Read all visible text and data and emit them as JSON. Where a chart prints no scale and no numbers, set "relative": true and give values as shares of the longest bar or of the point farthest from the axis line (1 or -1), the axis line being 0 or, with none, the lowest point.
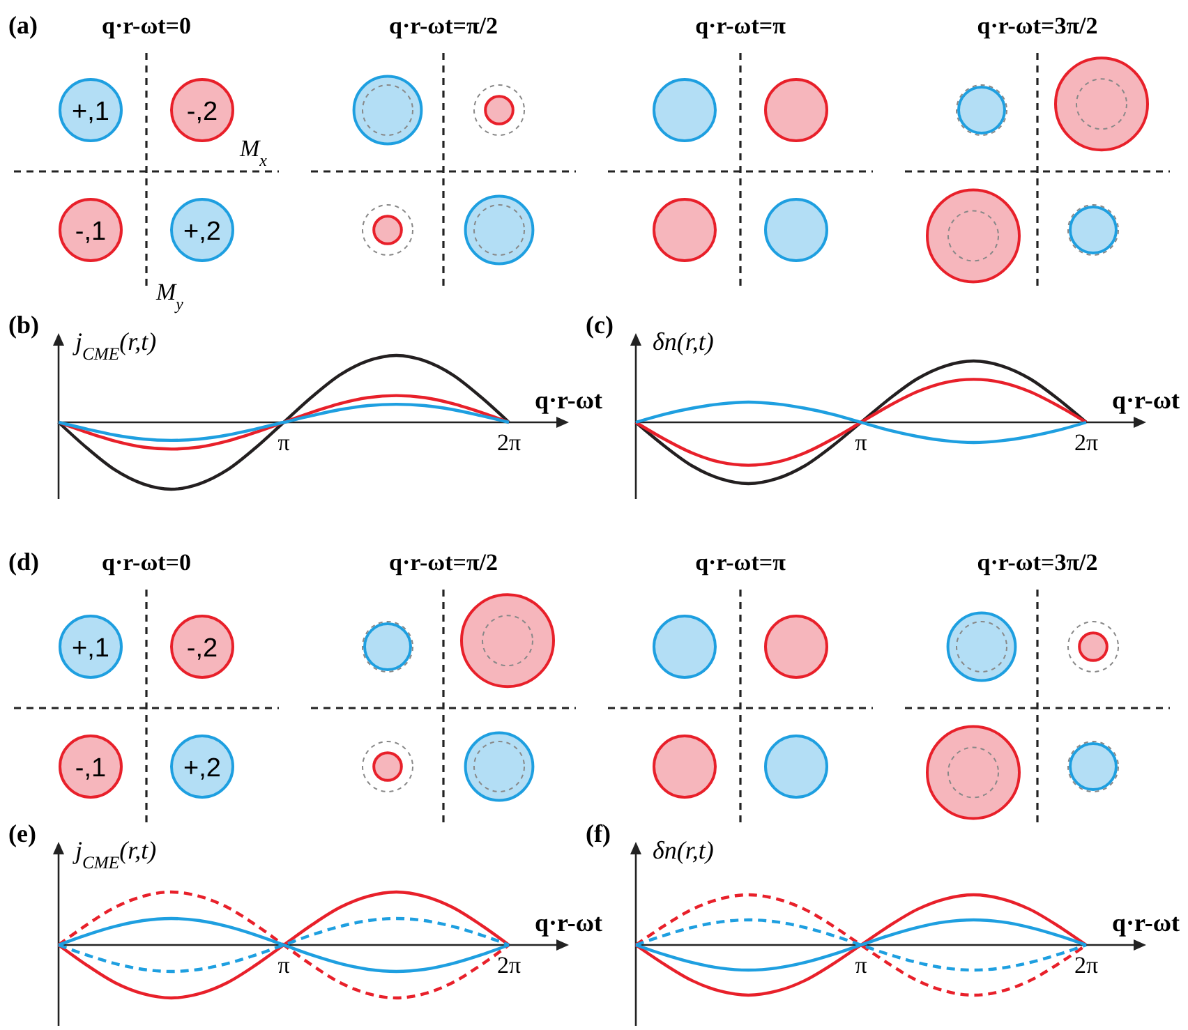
{
  "chart_data": [
    {
      "type": "other",
      "title": "(a)",
      "annotations": [
        "q·r-ωt=0",
        "q·r-ωt=π/2",
        "q·r-ωt=π",
        "q·r-ωt=3π/2",
        "+,1",
        "-,2",
        "-,1",
        "+,2",
        "M$_{x}$",
        "M$_{y}$"
      ]
    },
    {
      "type": "line",
      "title": "(b)",
      "ylabel": "j$_{CME}$(r,t)",
      "xlabel": "q·r-ωt",
      "relative": true,
      "categories": [
        null,
        null,
        null,
        null,
        null,
        null,
        null,
        null,
        "π",
        null,
        null,
        null,
        null,
        null,
        null,
        null,
        "2π"
      ],
      "series": [
        {
          "color": "#231f20",
          "line_style": "solid",
          "values": [
            0,
            -0.38,
            -0.71,
            -0.92,
            -1,
            -0.92,
            -0.71,
            -0.38,
            0,
            0.38,
            0.71,
            0.92,
            1,
            0.92,
            0.71,
            0.38,
            0
          ]
        },
        {
          "color": "#e8202a",
          "line_style": "solid",
          "values": [
            0,
            -0.15,
            -0.28,
            -0.37,
            -0.4,
            -0.37,
            -0.28,
            -0.15,
            0,
            0.15,
            0.28,
            0.37,
            0.4,
            0.37,
            0.28,
            0.15,
            0
          ]
        },
        {
          "color": "#1e9fe0",
          "line_style": "solid",
          "values": [
            0,
            -0.1,
            -0.19,
            -0.25,
            -0.27,
            -0.25,
            -0.19,
            -0.1,
            0,
            0.1,
            0.19,
            0.25,
            0.27,
            0.25,
            0.19,
            0.1,
            0
          ]
        }
      ]
    },
    {
      "type": "line",
      "title": "(c)",
      "ylabel": "δn(r,t)",
      "xlabel": "q·r-ωt",
      "relative": true,
      "categories": [
        null,
        null,
        null,
        null,
        null,
        null,
        null,
        null,
        "π",
        null,
        null,
        null,
        null,
        null,
        null,
        null,
        "2π"
      ],
      "series": [
        {
          "color": "#231f20",
          "line_style": "solid",
          "values": [
            0,
            -0.38,
            -0.71,
            -0.92,
            -1,
            -0.92,
            -0.71,
            -0.38,
            0,
            0.38,
            0.71,
            0.92,
            1,
            0.92,
            0.71,
            0.38,
            0
          ]
        },
        {
          "color": "#e8202a",
          "line_style": "solid",
          "values": [
            0,
            -0.27,
            -0.5,
            -0.65,
            -0.7,
            -0.65,
            -0.5,
            -0.27,
            0,
            0.27,
            0.5,
            0.65,
            0.7,
            0.65,
            0.5,
            0.27,
            0
          ]
        },
        {
          "color": "#1e9fe0",
          "line_style": "solid",
          "values": [
            0,
            0.13,
            0.23,
            0.3,
            0.33,
            0.3,
            0.23,
            0.13,
            0,
            -0.13,
            -0.23,
            -0.3,
            -0.33,
            -0.3,
            -0.23,
            -0.13,
            0
          ]
        }
      ]
    },
    {
      "type": "other",
      "title": "(d)",
      "annotations": [
        "q·r-ωt=0",
        "q·r-ωt=π/2",
        "q·r-ωt=π",
        "q·r-ωt=3π/2",
        "+,1",
        "-,2",
        "-,1",
        "+,2"
      ]
    },
    {
      "type": "line",
      "title": "(e)",
      "ylabel": "j$_{CME}$(r,t)",
      "xlabel": "q·r-ωt",
      "relative": true,
      "categories": [
        null,
        null,
        null,
        null,
        null,
        null,
        null,
        null,
        "π",
        null,
        null,
        null,
        null,
        null,
        null,
        null,
        "2π"
      ],
      "series": [
        {
          "color": "#e8202a",
          "line_style": "solid",
          "values": [
            0,
            -0.38,
            -0.71,
            -0.92,
            -1,
            -0.92,
            -0.71,
            -0.38,
            0,
            0.38,
            0.71,
            0.92,
            1,
            0.92,
            0.71,
            0.38,
            0
          ]
        },
        {
          "color": "#e8202a",
          "line_style": "dashed",
          "values": [
            0,
            0.38,
            0.71,
            0.92,
            1,
            0.92,
            0.71,
            0.38,
            0,
            -0.38,
            -0.71,
            -0.92,
            -1,
            -0.92,
            -0.71,
            -0.38,
            0
          ]
        },
        {
          "color": "#1e9fe0",
          "line_style": "solid",
          "values": [
            0,
            0.19,
            0.35,
            0.46,
            0.5,
            0.46,
            0.35,
            0.19,
            0,
            -0.19,
            -0.35,
            -0.46,
            -0.5,
            -0.46,
            -0.35,
            -0.19,
            0
          ]
        },
        {
          "color": "#1e9fe0",
          "line_style": "dashed",
          "values": [
            0,
            -0.19,
            -0.35,
            -0.46,
            -0.5,
            -0.46,
            -0.35,
            -0.19,
            0,
            0.19,
            0.35,
            0.46,
            0.5,
            0.46,
            0.35,
            0.19,
            0
          ]
        }
      ]
    },
    {
      "type": "line",
      "title": "(f)",
      "ylabel": "δn(r,t)",
      "xlabel": "q·r-ωt",
      "relative": true,
      "categories": [
        null,
        null,
        null,
        null,
        null,
        null,
        null,
        null,
        "π",
        null,
        null,
        null,
        null,
        null,
        null,
        null,
        "2π"
      ],
      "series": [
        {
          "color": "#e8202a",
          "line_style": "solid",
          "values": [
            0,
            -0.38,
            -0.71,
            -0.92,
            -1,
            -0.92,
            -0.71,
            -0.38,
            0,
            0.38,
            0.71,
            0.92,
            1,
            0.92,
            0.71,
            0.38,
            0
          ]
        },
        {
          "color": "#e8202a",
          "line_style": "dashed",
          "values": [
            0,
            0.38,
            0.71,
            0.92,
            1,
            0.92,
            0.71,
            0.38,
            0,
            -0.38,
            -0.71,
            -0.92,
            -1,
            -0.92,
            -0.71,
            -0.38,
            0
          ]
        },
        {
          "color": "#1e9fe0",
          "line_style": "solid",
          "values": [
            0,
            -0.19,
            -0.35,
            -0.46,
            -0.5,
            -0.46,
            -0.35,
            -0.19,
            0,
            0.19,
            0.35,
            0.46,
            0.5,
            0.46,
            0.35,
            0.19,
            0
          ]
        },
        {
          "color": "#1e9fe0",
          "line_style": "dashed",
          "values": [
            0,
            0.19,
            0.35,
            0.46,
            0.5,
            0.46,
            0.35,
            0.19,
            0,
            -0.19,
            -0.35,
            -0.46,
            -0.5,
            -0.46,
            -0.35,
            -0.19,
            0
          ]
        }
      ]
    }
  ]
}
